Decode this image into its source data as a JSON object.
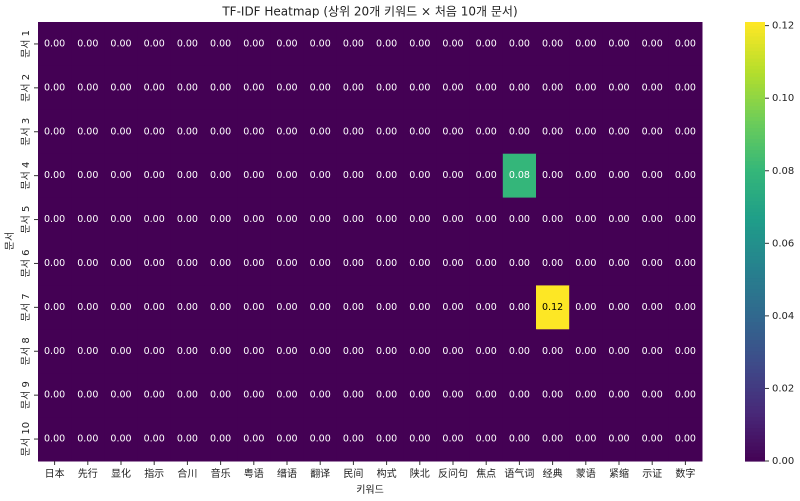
{
  "chart_data": {
    "type": "heatmap",
    "title": "TF-IDF Heatmap (상위 20개 키워드 × 처음 10개 문서)",
    "x_label": "키워드",
    "y_label": "문서",
    "x": [
      "日本",
      "先行",
      "显化",
      "指示",
      "合川",
      "音乐",
      "粤语",
      "缙语",
      "翻译",
      "民间",
      "构式",
      "陕北",
      "反问句",
      "焦点",
      "语气词",
      "经典",
      "蒙语",
      "紧缩",
      "示证",
      "数字"
    ],
    "y": [
      "문서 1",
      "문서 2",
      "문서 3",
      "문서 4",
      "문서 5",
      "문서 6",
      "문서 7",
      "문서 8",
      "문서 9",
      "문서 10"
    ],
    "values": [
      [
        0,
        0,
        0,
        0,
        0,
        0,
        0,
        0,
        0,
        0,
        0,
        0,
        0,
        0,
        0,
        0,
        0,
        0,
        0,
        0
      ],
      [
        0,
        0,
        0,
        0,
        0,
        0,
        0,
        0,
        0,
        0,
        0,
        0,
        0,
        0,
        0,
        0,
        0,
        0,
        0,
        0
      ],
      [
        0,
        0,
        0,
        0,
        0,
        0,
        0,
        0,
        0,
        0,
        0,
        0,
        0,
        0,
        0,
        0,
        0,
        0,
        0,
        0
      ],
      [
        0,
        0,
        0,
        0,
        0,
        0,
        0,
        0,
        0,
        0,
        0,
        0,
        0,
        0,
        0.08,
        0,
        0,
        0,
        0,
        0
      ],
      [
        0,
        0,
        0,
        0,
        0,
        0,
        0,
        0,
        0,
        0,
        0,
        0,
        0,
        0,
        0,
        0,
        0,
        0,
        0,
        0
      ],
      [
        0,
        0,
        0,
        0,
        0,
        0,
        0,
        0,
        0,
        0,
        0,
        0,
        0,
        0,
        0,
        0,
        0,
        0,
        0,
        0
      ],
      [
        0,
        0,
        0,
        0,
        0,
        0,
        0,
        0,
        0,
        0,
        0,
        0,
        0,
        0,
        0,
        0.121,
        0,
        0,
        0,
        0
      ],
      [
        0,
        0,
        0,
        0,
        0,
        0,
        0,
        0,
        0,
        0,
        0,
        0,
        0,
        0,
        0,
        0,
        0,
        0,
        0,
        0
      ],
      [
        0,
        0,
        0,
        0,
        0,
        0,
        0,
        0,
        0,
        0,
        0,
        0,
        0,
        0,
        0,
        0,
        0,
        0,
        0,
        0
      ],
      [
        0,
        0,
        0,
        0,
        0,
        0,
        0,
        0,
        0,
        0,
        0,
        0,
        0,
        0,
        0,
        0,
        0,
        0,
        0,
        0
      ]
    ],
    "value_labels": [
      [
        "0.00",
        "0.00",
        "0.00",
        "0.00",
        "0.00",
        "0.00",
        "0.00",
        "0.00",
        "0.00",
        "0.00",
        "0.00",
        "0.00",
        "0.00",
        "0.00",
        "0.00",
        "0.00",
        "0.00",
        "0.00",
        "0.00",
        "0.00"
      ],
      [
        "0.00",
        "0.00",
        "0.00",
        "0.00",
        "0.00",
        "0.00",
        "0.00",
        "0.00",
        "0.00",
        "0.00",
        "0.00",
        "0.00",
        "0.00",
        "0.00",
        "0.00",
        "0.00",
        "0.00",
        "0.00",
        "0.00",
        "0.00"
      ],
      [
        "0.00",
        "0.00",
        "0.00",
        "0.00",
        "0.00",
        "0.00",
        "0.00",
        "0.00",
        "0.00",
        "0.00",
        "0.00",
        "0.00",
        "0.00",
        "0.00",
        "0.00",
        "0.00",
        "0.00",
        "0.00",
        "0.00",
        "0.00"
      ],
      [
        "0.00",
        "0.00",
        "0.00",
        "0.00",
        "0.00",
        "0.00",
        "0.00",
        "0.00",
        "0.00",
        "0.00",
        "0.00",
        "0.00",
        "0.00",
        "0.00",
        "0.08",
        "0.00",
        "0.00",
        "0.00",
        "0.00",
        "0.00"
      ],
      [
        "0.00",
        "0.00",
        "0.00",
        "0.00",
        "0.00",
        "0.00",
        "0.00",
        "0.00",
        "0.00",
        "0.00",
        "0.00",
        "0.00",
        "0.00",
        "0.00",
        "0.00",
        "0.00",
        "0.00",
        "0.00",
        "0.00",
        "0.00"
      ],
      [
        "0.00",
        "0.00",
        "0.00",
        "0.00",
        "0.00",
        "0.00",
        "0.00",
        "0.00",
        "0.00",
        "0.00",
        "0.00",
        "0.00",
        "0.00",
        "0.00",
        "0.00",
        "0.00",
        "0.00",
        "0.00",
        "0.00",
        "0.00"
      ],
      [
        "0.00",
        "0.00",
        "0.00",
        "0.00",
        "0.00",
        "0.00",
        "0.00",
        "0.00",
        "0.00",
        "0.00",
        "0.00",
        "0.00",
        "0.00",
        "0.00",
        "0.00",
        "0.12",
        "0.00",
        "0.00",
        "0.00",
        "0.00"
      ],
      [
        "0.00",
        "0.00",
        "0.00",
        "0.00",
        "0.00",
        "0.00",
        "0.00",
        "0.00",
        "0.00",
        "0.00",
        "0.00",
        "0.00",
        "0.00",
        "0.00",
        "0.00",
        "0.00",
        "0.00",
        "0.00",
        "0.00",
        "0.00"
      ],
      [
        "0.00",
        "0.00",
        "0.00",
        "0.00",
        "0.00",
        "0.00",
        "0.00",
        "0.00",
        "0.00",
        "0.00",
        "0.00",
        "0.00",
        "0.00",
        "0.00",
        "0.00",
        "0.00",
        "0.00",
        "0.00",
        "0.00",
        "0.00"
      ],
      [
        "0.00",
        "0.00",
        "0.00",
        "0.00",
        "0.00",
        "0.00",
        "0.00",
        "0.00",
        "0.00",
        "0.00",
        "0.00",
        "0.00",
        "0.00",
        "0.00",
        "0.00",
        "0.00",
        "0.00",
        "0.00",
        "0.00",
        "0.00"
      ]
    ],
    "colormap": "viridis",
    "clim": [
      0,
      0.121
    ],
    "cticks": [
      {
        "value": 0,
        "label": "0.00"
      },
      {
        "value": 0.02,
        "label": "0.02"
      },
      {
        "value": 0.04,
        "label": "0.04"
      },
      {
        "value": 0.06,
        "label": "0.06"
      },
      {
        "value": 0.08,
        "label": "0.08"
      },
      {
        "value": 0.1,
        "label": "0.10"
      },
      {
        "value": 0.12,
        "label": "0.12"
      }
    ]
  }
}
